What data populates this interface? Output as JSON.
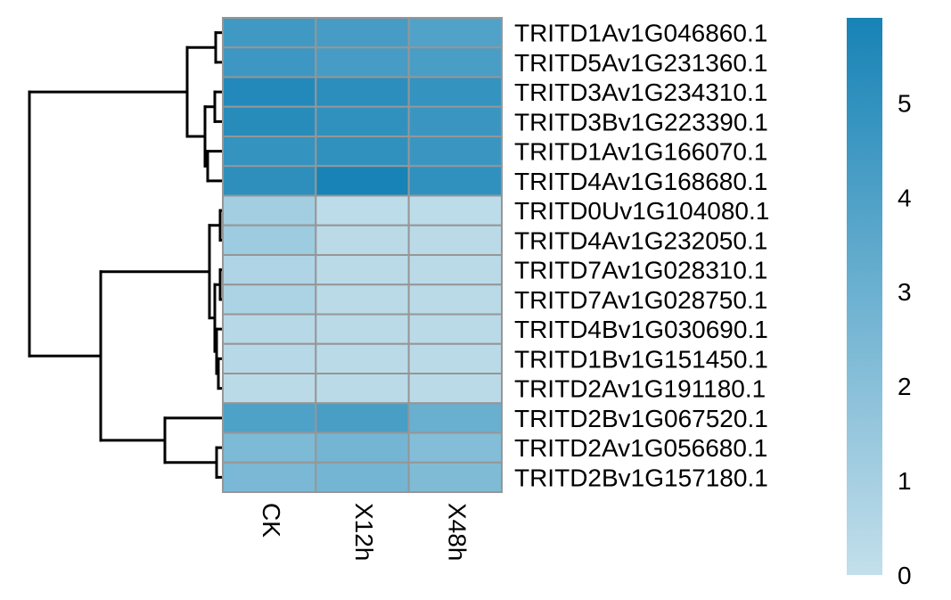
{
  "chart_data": {
    "type": "heatmap",
    "columns": [
      "CK",
      "X12h",
      "X48h"
    ],
    "rows": [
      {
        "label": "TRITD1Av1G046860.1",
        "values": [
          4.5,
          4.3,
          3.9
        ]
      },
      {
        "label": "TRITD5Av1G231360.1",
        "values": [
          4.6,
          4.3,
          4.2
        ]
      },
      {
        "label": "TRITD3Av1G234310.1",
        "values": [
          5.5,
          5.2,
          4.9
        ]
      },
      {
        "label": "TRITD3Bv1G223390.1",
        "values": [
          5.3,
          5.0,
          4.7
        ]
      },
      {
        "label": "TRITD1Av1G166070.1",
        "values": [
          4.9,
          5.0,
          4.7
        ]
      },
      {
        "label": "TRITD4Av1G168680.1",
        "values": [
          5.1,
          5.9,
          5.0
        ]
      },
      {
        "label": "TRITD0Uv1G104080.1",
        "values": [
          1.1,
          0.2,
          0.2
        ]
      },
      {
        "label": "TRITD4Av1G232050.1",
        "values": [
          1.3,
          0.3,
          0.3
        ]
      },
      {
        "label": "TRITD7Av1G028310.1",
        "values": [
          0.7,
          0.3,
          0.3
        ]
      },
      {
        "label": "TRITD7Av1G028750.1",
        "values": [
          0.8,
          0.3,
          0.3
        ]
      },
      {
        "label": "TRITD4Bv1G030690.1",
        "values": [
          0.4,
          0.3,
          0.3
        ]
      },
      {
        "label": "TRITD1Bv1G151450.1",
        "values": [
          0.4,
          0.3,
          0.3
        ]
      },
      {
        "label": "TRITD2Av1G191180.1",
        "values": [
          0.3,
          0.3,
          0.3
        ]
      },
      {
        "label": "TRITD2Bv1G067520.1",
        "values": [
          4.0,
          4.2,
          3.1
        ]
      },
      {
        "label": "TRITD2Av1G056680.1",
        "values": [
          2.4,
          2.7,
          2.2
        ]
      },
      {
        "label": "TRITD2Bv1G157180.1",
        "values": [
          2.5,
          2.7,
          2.3
        ]
      }
    ],
    "color_scale": {
      "min": 0,
      "max": 5.9,
      "low_color": "#c3dfeb",
      "high_color": "#1783b6",
      "ticks": [
        0,
        1,
        2,
        3,
        4,
        5
      ]
    },
    "cell_border_color": "#969696",
    "row_dendrogram": true,
    "legend_position": "right"
  }
}
